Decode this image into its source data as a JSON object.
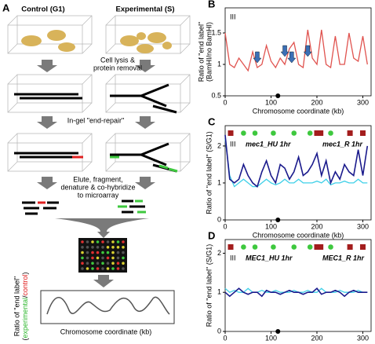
{
  "panel_a": {
    "label": "A",
    "control": "Control (G1)",
    "experimental": "Experimental (S)",
    "step1": [
      "Cell lysis &",
      "protein removal"
    ],
    "step2": "In-gel \"end-repair\"",
    "step3": [
      "Elute, fragment,",
      "denature & co-hybridize",
      "to microarray"
    ],
    "ylabel": [
      "Ratio of \"end label\"",
      "experimental",
      "/",
      "control"
    ],
    "ylabel_open": "(",
    "ylabel_close": ")",
    "xlabel": "Chromosome coordinate (kb)"
  },
  "chart_data": [
    {
      "type": "line",
      "label": "B",
      "ylabel": [
        "Ratio of \"end label\"",
        "(BamHI/no BamHI)"
      ],
      "xlabel": "Chromosome coordinate (kb)",
      "chromosome": "III",
      "xlim": [
        0,
        318
      ],
      "xticks": [
        0,
        100,
        200,
        300
      ],
      "ylim": [
        0.5,
        1.9
      ],
      "yticks": [
        0.5,
        1,
        1.5
      ],
      "x": [
        0,
        10,
        20,
        30,
        40,
        50,
        60,
        70,
        80,
        90,
        100,
        110,
        120,
        130,
        140,
        150,
        160,
        170,
        180,
        190,
        200,
        210,
        220,
        230,
        240,
        250,
        260,
        270,
        280,
        290,
        300,
        310
      ],
      "series": [
        {
          "color": "#e0534f",
          "values": [
            1.5,
            1.0,
            0.95,
            1.1,
            1.0,
            0.9,
            1.2,
            0.95,
            1.0,
            1.3,
            1.05,
            0.95,
            1.1,
            1.0,
            1.25,
            1.35,
            1.0,
            0.95,
            1.55,
            1.1,
            1.0,
            1.55,
            1.0,
            0.95,
            1.45,
            1.0,
            1.0,
            1.5,
            1.1,
            1.05,
            1.45,
            1.0
          ]
        }
      ],
      "arrow_x": [
        70,
        130,
        145,
        180
      ],
      "arrow_color": "#3b6fb6",
      "centromere_x": 115
    },
    {
      "type": "line",
      "label": "C",
      "ylabel": [
        "Ratio of \"end label\" (S/G1)"
      ],
      "xlabel": "Chromosome coordinate (kb)",
      "chromosome": "III",
      "xlim": [
        0,
        318
      ],
      "xticks": [
        0,
        100,
        200,
        300
      ],
      "ylim": [
        0,
        2.55
      ],
      "yticks": [
        0,
        1,
        2
      ],
      "x": [
        0,
        10,
        20,
        30,
        40,
        50,
        60,
        70,
        80,
        90,
        100,
        110,
        120,
        130,
        140,
        150,
        160,
        170,
        180,
        190,
        200,
        210,
        220,
        230,
        240,
        250,
        260,
        270,
        280,
        290,
        300,
        310
      ],
      "series": [
        {
          "name": "mec1_HU 1hr",
          "color": "#3fd0e8",
          "values": [
            2.2,
            1.2,
            0.9,
            1.0,
            1.1,
            1.0,
            0.9,
            0.9,
            1.0,
            1.1,
            1.0,
            0.95,
            1.0,
            1.1,
            1.0,
            1.0,
            1.1,
            1.0,
            1.0,
            1.0,
            1.05,
            1.0,
            1.1,
            0.95,
            1.0,
            1.0,
            1.05,
            1.0,
            1.0,
            1.1,
            1.0,
            1.0
          ]
        },
        {
          "name": "mec1_R 1hr",
          "color": "#1a1a8c",
          "values": [
            2.3,
            1.1,
            1.0,
            1.1,
            1.5,
            1.2,
            1.0,
            0.9,
            1.3,
            1.6,
            1.2,
            1.0,
            1.5,
            1.4,
            1.1,
            1.3,
            1.7,
            1.2,
            1.3,
            1.5,
            1.8,
            1.2,
            1.6,
            1.0,
            1.3,
            1.1,
            1.5,
            1.3,
            1.2,
            1.9,
            1.2,
            2.0
          ]
        }
      ],
      "square_x": [
        12,
        200,
        208,
        272,
        300
      ],
      "square_color": "#a31d1d",
      "circle_x": [
        40,
        65,
        105,
        150,
        185,
        230
      ],
      "circle_color": "#3ec83e",
      "centromere_x": 115
    },
    {
      "type": "line",
      "label": "D",
      "ylabel": [
        "Ratio of \"end label\" (S/G1)"
      ],
      "xlabel": "Chromosome coordinate (kb)",
      "chromosome": "III",
      "xlim": [
        0,
        318
      ],
      "xticks": [
        0,
        100,
        200,
        300
      ],
      "ylim": [
        0,
        2.35
      ],
      "yticks": [
        0,
        1,
        2
      ],
      "x": [
        0,
        10,
        20,
        30,
        40,
        50,
        60,
        70,
        80,
        90,
        100,
        110,
        120,
        130,
        140,
        150,
        160,
        170,
        180,
        190,
        200,
        210,
        220,
        230,
        240,
        250,
        260,
        270,
        280,
        290,
        300,
        310
      ],
      "series": [
        {
          "name": "MEC1_HU 1hr",
          "color": "#3fd0e8",
          "values": [
            1.1,
            1.0,
            1.05,
            1.0,
            1.0,
            1.1,
            1.0,
            1.0,
            1.05,
            1.0,
            1.0,
            1.05,
            1.0,
            1.0,
            1.0,
            1.05,
            1.0,
            1.0,
            1.05,
            1.0,
            1.0,
            1.1,
            1.0,
            1.0,
            1.0,
            1.05,
            1.0,
            1.0,
            1.0,
            1.05,
            1.0,
            1.0
          ]
        },
        {
          "name": "MEC1_R 1hr",
          "color": "#1a1a8c",
          "values": [
            1.0,
            0.9,
            1.0,
            1.1,
            1.0,
            0.95,
            1.0,
            1.0,
            0.9,
            1.05,
            1.0,
            1.0,
            0.95,
            1.0,
            1.05,
            1.0,
            1.0,
            0.95,
            1.0,
            1.0,
            1.1,
            0.95,
            1.0,
            1.0,
            1.05,
            1.0,
            0.9,
            1.0,
            1.05,
            1.0,
            1.0,
            1.0
          ]
        }
      ],
      "square_x": [
        12,
        200,
        208,
        272,
        300
      ],
      "square_color": "#a31d1d",
      "circle_x": [
        40,
        65,
        105,
        150,
        185,
        230
      ],
      "circle_color": "#3ec83e",
      "centromere_x": 115
    }
  ]
}
